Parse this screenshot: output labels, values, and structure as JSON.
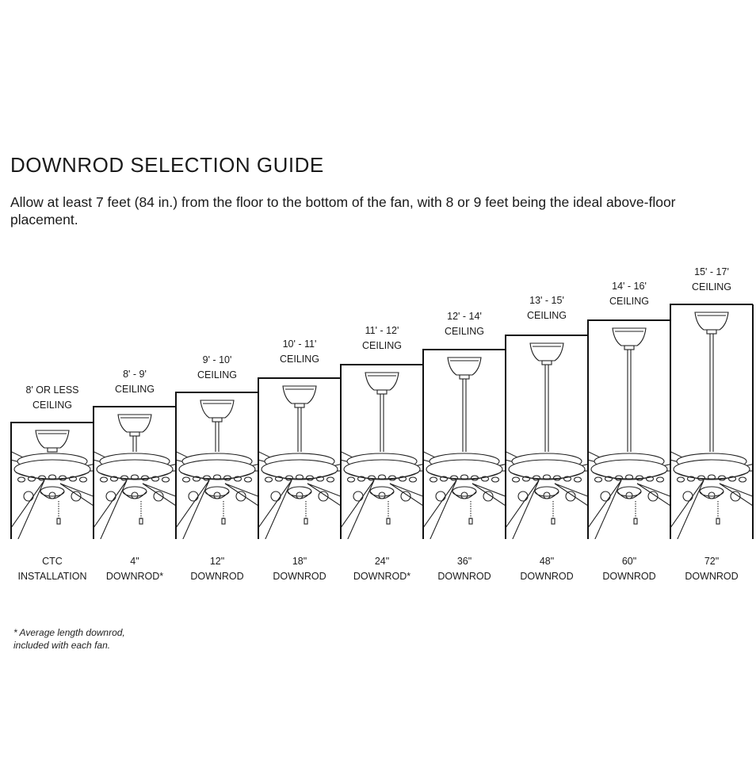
{
  "title": "DOWNROD SELECTION GUIDE",
  "subtitle": "Allow at least 7 feet (84 in.) from the floor to the bottom of the fan, with 8 or 9 feet being the ideal above-floor placement.",
  "columns": [
    {
      "ceiling": [
        "8' OR LESS",
        "CEILING"
      ],
      "downrod": [
        "CTC",
        "INSTALLATION"
      ],
      "rod_in": 0
    },
    {
      "ceiling": [
        "8' - 9'",
        "CEILING"
      ],
      "downrod": [
        "4\"",
        "DOWNROD*"
      ],
      "rod_in": 4
    },
    {
      "ceiling": [
        "9' - 10'",
        "CEILING"
      ],
      "downrod": [
        "12\"",
        "DOWNROD"
      ],
      "rod_in": 12
    },
    {
      "ceiling": [
        "10' - 11'",
        "CEILING"
      ],
      "downrod": [
        "18\"",
        "DOWNROD"
      ],
      "rod_in": 18
    },
    {
      "ceiling": [
        "11' - 12'",
        "CEILING"
      ],
      "downrod": [
        "24\"",
        "DOWNROD*"
      ],
      "rod_in": 24
    },
    {
      "ceiling": [
        "12' - 14'",
        "CEILING"
      ],
      "downrod": [
        "36\"",
        "DOWNROD"
      ],
      "rod_in": 36
    },
    {
      "ceiling": [
        "13' - 15'",
        "CEILING"
      ],
      "downrod": [
        "48\"",
        "DOWNROD"
      ],
      "rod_in": 48
    },
    {
      "ceiling": [
        "14' - 16'",
        "CEILING"
      ],
      "downrod": [
        "60\"",
        "DOWNROD"
      ],
      "rod_in": 60
    },
    {
      "ceiling": [
        "15' - 17'",
        "CEILING"
      ],
      "downrod": [
        "72\"",
        "DOWNROD"
      ],
      "rod_in": 72
    }
  ],
  "footnote": [
    "* Average length downrod,",
    "included with each fan."
  ]
}
